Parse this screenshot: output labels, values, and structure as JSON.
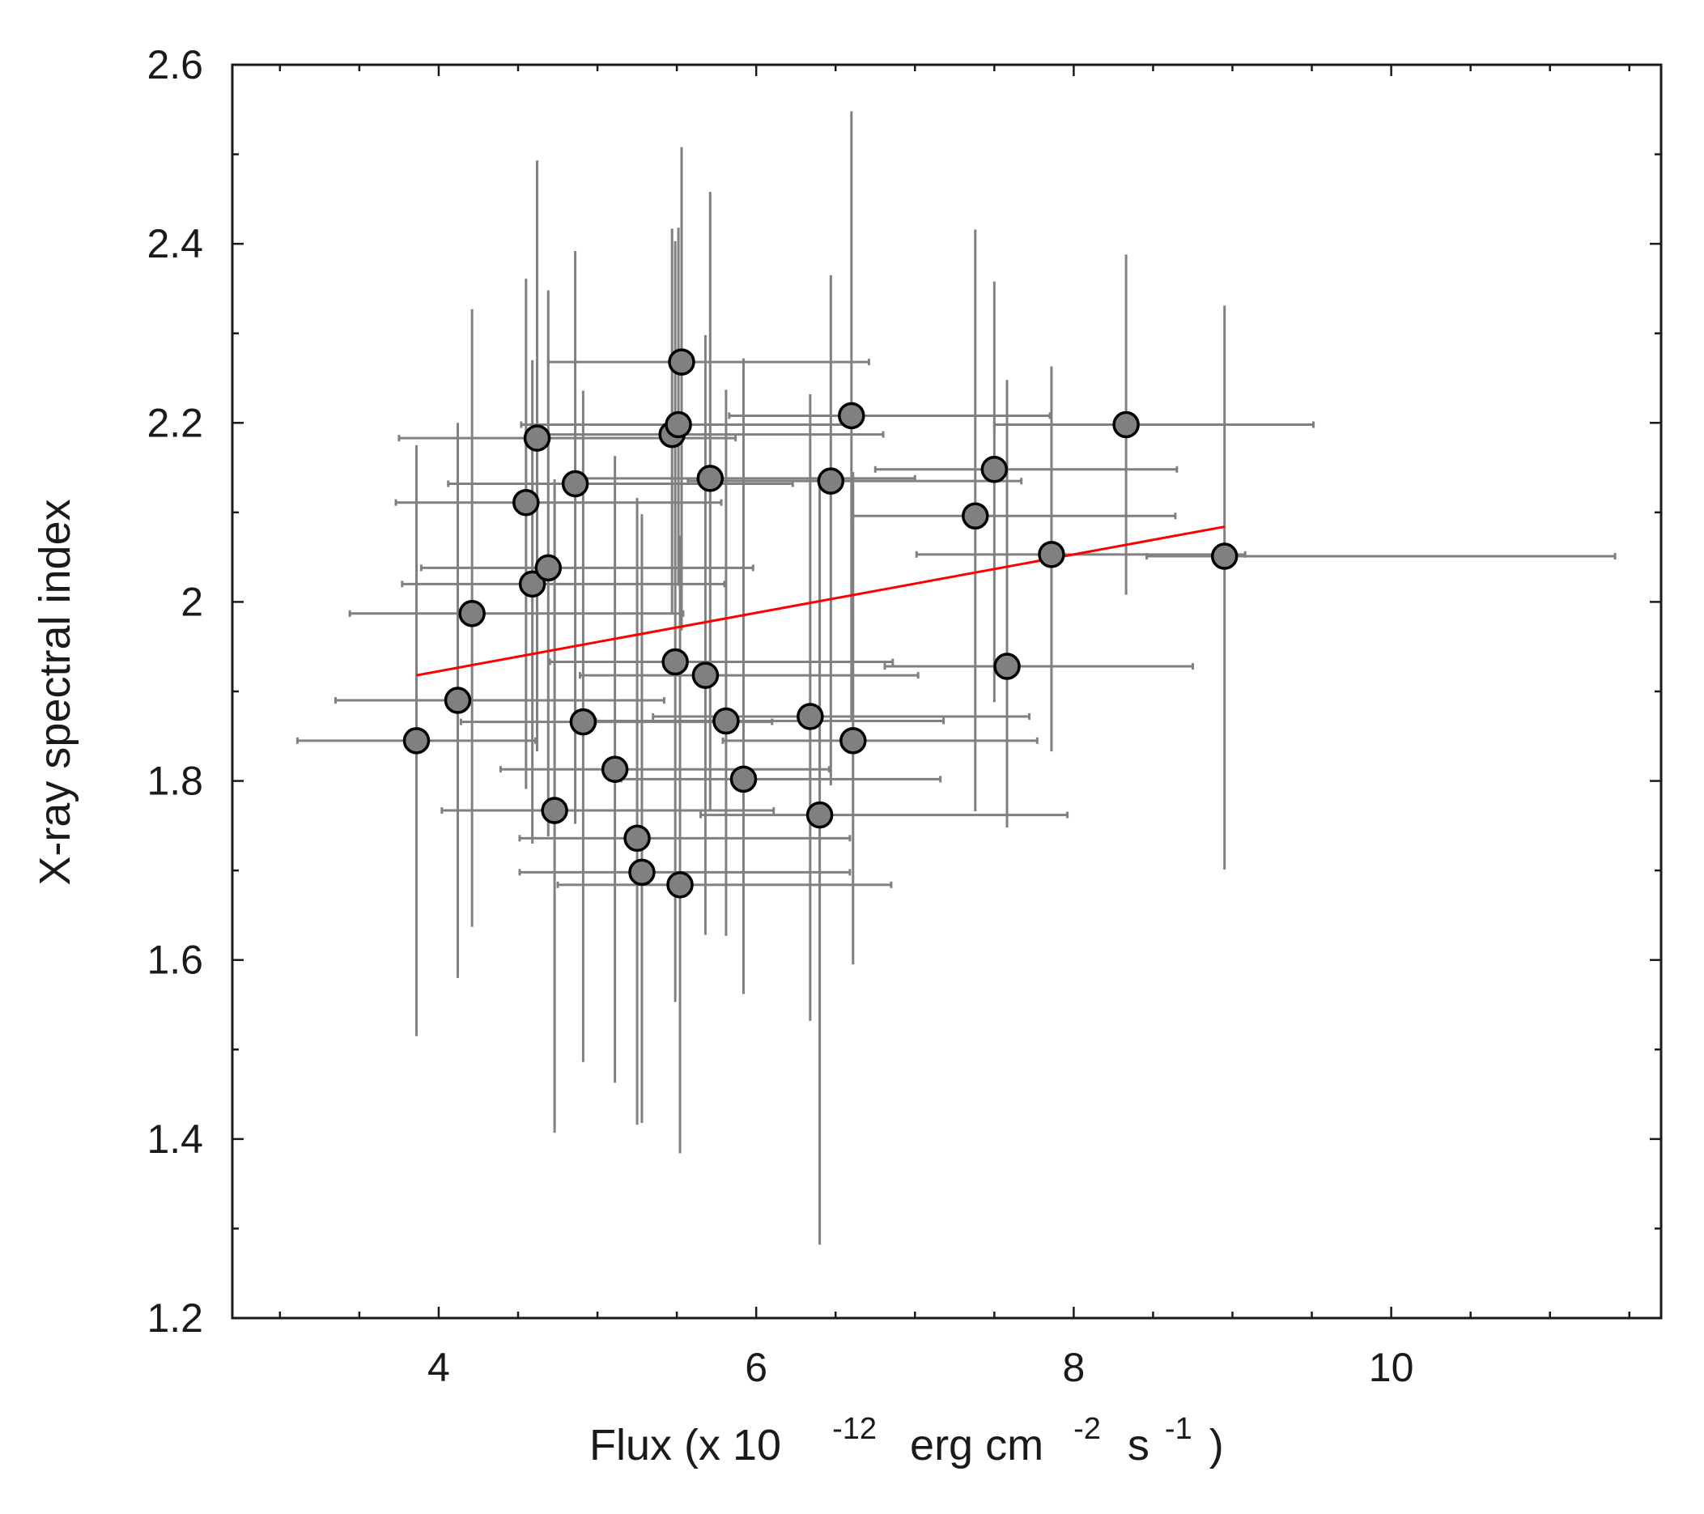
{
  "chart_data": {
    "type": "scatter",
    "title": "",
    "xlabel": {
      "main": "Flux (x 10",
      "exp1": "-12",
      "unit1": "erg cm",
      "exp2": "-2",
      "unit2": "s",
      "exp3": "-1",
      "close": ")"
    },
    "ylabel": "X-ray spectral index",
    "xlim": [
      2.7,
      11.7
    ],
    "ylim": [
      1.2,
      2.6
    ],
    "x_ticks": [
      4,
      6,
      8,
      10
    ],
    "x_tick_labels": [
      "4",
      "6",
      "8",
      "10"
    ],
    "x_minor_step": 0.5,
    "y_ticks": [
      1.2,
      1.4,
      1.6,
      1.8,
      2.0,
      2.2,
      2.4,
      2.6
    ],
    "y_tick_labels": [
      "1.2",
      "1.4",
      "1.6",
      "1.8",
      "2",
      "2.2",
      "2.4",
      "2.6"
    ],
    "y_minor_step": 0.1,
    "colors": {
      "marker_fill": "#808080",
      "marker_edge": "#000000",
      "errorbar": "#808080",
      "fit_line": "#ff0000",
      "axis": "#1a1a1a"
    },
    "points": [
      {
        "x": 3.86,
        "y": 1.845,
        "xerr": [
          0.75,
          0.75
        ],
        "yerr": [
          0.33,
          0.33
        ]
      },
      {
        "x": 4.12,
        "y": 1.89,
        "xerr": [
          0.77,
          1.3
        ],
        "yerr": [
          0.31,
          0.31
        ]
      },
      {
        "x": 4.21,
        "y": 1.987,
        "xerr": [
          0.77,
          1.33
        ],
        "yerr": [
          0.35,
          0.34
        ]
      },
      {
        "x": 4.55,
        "y": 2.111,
        "xerr": [
          0.82,
          1.23
        ],
        "yerr": [
          0.32,
          0.25
        ]
      },
      {
        "x": 4.59,
        "y": 2.02,
        "xerr": [
          0.82,
          1.21
        ],
        "yerr": [
          0.29,
          0.25
        ]
      },
      {
        "x": 4.62,
        "y": 2.183,
        "xerr": [
          0.87,
          1.25
        ],
        "yerr": [
          0.35,
          0.31
        ]
      },
      {
        "x": 4.69,
        "y": 2.038,
        "xerr": [
          0.8,
          1.29
        ],
        "yerr": [
          0.3,
          0.31
        ]
      },
      {
        "x": 4.73,
        "y": 1.767,
        "xerr": [
          0.71,
          1.38
        ],
        "yerr": [
          0.36,
          0.37
        ]
      },
      {
        "x": 4.86,
        "y": 2.132,
        "xerr": [
          0.8,
          1.37
        ],
        "yerr": [
          0.38,
          0.26
        ]
      },
      {
        "x": 4.91,
        "y": 1.866,
        "xerr": [
          0.77,
          1.19
        ],
        "yerr": [
          0.38,
          0.37
        ]
      },
      {
        "x": 5.11,
        "y": 1.813,
        "xerr": [
          0.72,
          1.35
        ],
        "yerr": [
          0.35,
          0.35
        ]
      },
      {
        "x": 5.25,
        "y": 1.736,
        "xerr": [
          0.74,
          1.34
        ],
        "yerr": [
          0.32,
          0.38
        ]
      },
      {
        "x": 5.28,
        "y": 1.698,
        "xerr": [
          0.77,
          1.31
        ],
        "yerr": [
          0.28,
          0.4
        ]
      },
      {
        "x": 5.47,
        "y": 2.187,
        "xerr": [
          0.89,
          1.33
        ],
        "yerr": [
          0.2,
          0.23
        ]
      },
      {
        "x": 5.49,
        "y": 1.933,
        "xerr": [
          0.79,
          1.37
        ],
        "yerr": [
          0.38,
          0.47
        ]
      },
      {
        "x": 5.51,
        "y": 2.198,
        "xerr": [
          0.99,
          1.12
        ],
        "yerr": [
          0.18,
          0.22
        ]
      },
      {
        "x": 5.52,
        "y": 1.684,
        "xerr": [
          0.77,
          1.33
        ],
        "yerr": [
          0.3,
          0.39
        ]
      },
      {
        "x": 5.53,
        "y": 2.268,
        "xerr": [
          0.84,
          1.18
        ],
        "yerr": [
          0.3,
          0.24
        ]
      },
      {
        "x": 5.68,
        "y": 1.918,
        "xerr": [
          0.79,
          1.34
        ],
        "yerr": [
          0.29,
          0.38
        ]
      },
      {
        "x": 5.71,
        "y": 2.138,
        "xerr": [
          0.89,
          1.29
        ],
        "yerr": [
          0.37,
          0.32
        ]
      },
      {
        "x": 5.81,
        "y": 1.867,
        "xerr": [
          0.82,
          1.37
        ],
        "yerr": [
          0.24,
          0.37
        ]
      },
      {
        "x": 5.92,
        "y": 1.802,
        "xerr": [
          0.77,
          1.24
        ],
        "yerr": [
          0.24,
          0.47
        ]
      },
      {
        "x": 6.34,
        "y": 1.872,
        "xerr": [
          0.99,
          1.38
        ],
        "yerr": [
          0.34,
          0.36
        ]
      },
      {
        "x": 6.4,
        "y": 1.762,
        "xerr": [
          0.75,
          1.56
        ],
        "yerr": [
          0.48,
          0.37
        ]
      },
      {
        "x": 6.47,
        "y": 2.135,
        "xerr": [
          0.9,
          1.2
        ],
        "yerr": [
          0.34,
          0.23
        ]
      },
      {
        "x": 6.6,
        "y": 2.208,
        "xerr": [
          0.77,
          1.25
        ],
        "yerr": [
          0.34,
          0.34
        ]
      },
      {
        "x": 6.61,
        "y": 1.845,
        "xerr": [
          0.82,
          1.16
        ],
        "yerr": [
          0.25,
          0.3
        ]
      },
      {
        "x": 7.38,
        "y": 2.096,
        "xerr": [
          0.77,
          1.26
        ],
        "yerr": [
          0.33,
          0.32
        ]
      },
      {
        "x": 7.5,
        "y": 2.148,
        "xerr": [
          0.75,
          1.15
        ],
        "yerr": [
          0.26,
          0.21
        ]
      },
      {
        "x": 7.58,
        "y": 1.928,
        "xerr": [
          0.77,
          1.17
        ],
        "yerr": [
          0.18,
          0.32
        ]
      },
      {
        "x": 7.86,
        "y": 2.053,
        "xerr": [
          0.85,
          1.22
        ],
        "yerr": [
          0.22,
          0.21
        ]
      },
      {
        "x": 8.33,
        "y": 2.198,
        "xerr": [
          0.83,
          1.18
        ],
        "yerr": [
          0.19,
          0.19
        ]
      },
      {
        "x": 8.95,
        "y": 2.051,
        "xerr": [
          0.49,
          2.46
        ],
        "yerr": [
          0.35,
          0.28
        ]
      }
    ],
    "fit_line": {
      "x": [
        3.86,
        8.95
      ],
      "y": [
        1.918,
        2.084
      ]
    }
  }
}
